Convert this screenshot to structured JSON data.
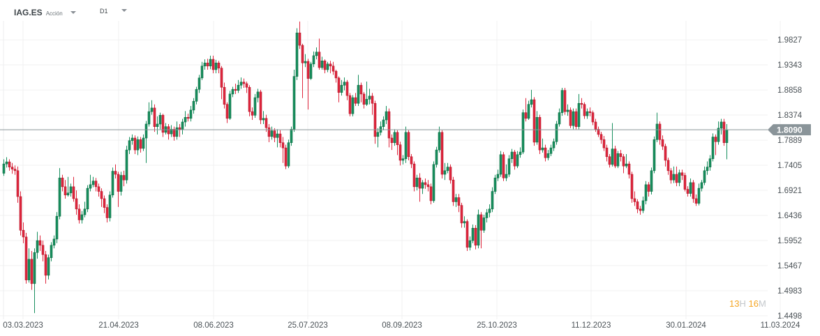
{
  "header": {
    "symbol": "IAG.ES",
    "instrument_type": "Acción",
    "timeframe": "D1"
  },
  "timer": {
    "hours": "13",
    "hours_unit": "H",
    "minutes": "16",
    "minutes_unit": "M"
  },
  "colors": {
    "up": "#178f5e",
    "down": "#e0263d",
    "price_line": "#8a9499",
    "timer": "#f5a623"
  },
  "chart_data": {
    "type": "candlestick",
    "current_price": "1.8090",
    "y_ticks": [
      "1.9827",
      "1.9343",
      "1.8858",
      "1.8374",
      "1.7889",
      "1.7405",
      "1.6921",
      "1.6436",
      "1.5952",
      "1.5467",
      "1.4983",
      "1.4498"
    ],
    "x_ticks": [
      "03.03.2023",
      "21.04.2023",
      "08.06.2023",
      "25.07.2023",
      "08.09.2023",
      "25.10.2023",
      "11.12.2023",
      "30.01.2024",
      "11.03.2024"
    ],
    "grid": true,
    "open": [
      1.725,
      1.743,
      1.747,
      1.737,
      1.733,
      1.73,
      1.68,
      1.615,
      1.602,
      1.519,
      1.559,
      1.512,
      1.572,
      1.595,
      1.586,
      1.568,
      1.528,
      1.562,
      1.586,
      1.598,
      1.642,
      1.716,
      1.699,
      1.683,
      1.687,
      1.699,
      1.676,
      1.656,
      1.635,
      1.645,
      1.656,
      1.696,
      1.703,
      1.71,
      1.699,
      1.69,
      1.676,
      1.659,
      1.639,
      1.683,
      1.729,
      1.723,
      1.69,
      1.721,
      1.712,
      1.77,
      1.788,
      1.793,
      1.77,
      1.79,
      1.773,
      1.793,
      1.82,
      1.844,
      1.851,
      1.815,
      1.82,
      1.837,
      1.804,
      1.815,
      1.801,
      1.81,
      1.796,
      1.813,
      1.81,
      1.824,
      1.833,
      1.831,
      1.847,
      1.864,
      1.887,
      1.909,
      1.932,
      1.938,
      1.932,
      1.945,
      1.925,
      1.938,
      1.928,
      1.891,
      1.858,
      1.831,
      1.878,
      1.887,
      1.885,
      1.895,
      1.901,
      1.898,
      1.891,
      1.844,
      1.837,
      1.871,
      1.882,
      1.828,
      1.831,
      1.813,
      1.796,
      1.807,
      1.794,
      1.801,
      1.784,
      1.774,
      1.739,
      1.784,
      1.81,
      1.912,
      1.996,
      1.972,
      1.938,
      1.941,
      1.908,
      1.936,
      1.952,
      1.959,
      1.929,
      1.942,
      1.925,
      1.936,
      1.932,
      1.922,
      1.909,
      1.881,
      1.895,
      1.901,
      1.875,
      1.84,
      1.871,
      1.86,
      1.895,
      1.878,
      1.858,
      1.868,
      1.874,
      1.86,
      1.796,
      1.804,
      1.815,
      1.828,
      1.844,
      1.793,
      1.784,
      1.804,
      1.78,
      1.75,
      1.753,
      1.804,
      1.757,
      1.743,
      1.699,
      1.716,
      1.696,
      1.707,
      1.703,
      1.699,
      1.672,
      1.742,
      1.77,
      1.804,
      1.723,
      1.73,
      1.737,
      1.712,
      1.67,
      1.678,
      1.663,
      1.629,
      1.632,
      1.582,
      1.595,
      1.619,
      1.586,
      1.645,
      1.615,
      1.639,
      1.649,
      1.656,
      1.69,
      1.716,
      1.723,
      1.761,
      1.716,
      1.723,
      1.753,
      1.766,
      1.739,
      1.761,
      1.766,
      1.842,
      1.831,
      1.858,
      1.867,
      1.785,
      1.833,
      1.77,
      1.774,
      1.755,
      1.763,
      1.774,
      1.786,
      1.82,
      1.842,
      1.885,
      1.844,
      1.847,
      1.817,
      1.844,
      1.815,
      1.86,
      1.858,
      1.836,
      1.844,
      1.842,
      1.824,
      1.81,
      1.8,
      1.79,
      1.774,
      1.757,
      1.742,
      1.772,
      1.739,
      1.763,
      1.757,
      1.739,
      1.743,
      1.723,
      1.676,
      1.67,
      1.656,
      1.653,
      1.672,
      1.703,
      1.69,
      1.73,
      1.79,
      1.82,
      1.79,
      1.777,
      1.75,
      1.73,
      1.712,
      1.723,
      1.707,
      1.726,
      1.721,
      1.694,
      1.686,
      1.707,
      1.676,
      1.667,
      1.696,
      1.707,
      1.73,
      1.737,
      1.753,
      1.795,
      1.786,
      1.812,
      1.824,
      1.784
    ],
    "high": [
      1.752,
      1.756,
      1.752,
      1.745,
      1.74,
      1.738,
      1.69,
      1.63,
      1.61,
      1.58,
      1.575,
      1.58,
      1.612,
      1.605,
      1.595,
      1.575,
      1.568,
      1.592,
      1.605,
      1.65,
      1.735,
      1.722,
      1.712,
      1.718,
      1.705,
      1.718,
      1.692,
      1.665,
      1.652,
      1.67,
      1.702,
      1.722,
      1.718,
      1.716,
      1.705,
      1.696,
      1.682,
      1.665,
      1.69,
      1.736,
      1.742,
      1.728,
      1.728,
      1.73,
      1.778,
      1.795,
      1.8,
      1.798,
      1.796,
      1.795,
      1.8,
      1.826,
      1.862,
      1.866,
      1.858,
      1.835,
      1.842,
      1.84,
      1.822,
      1.82,
      1.818,
      1.815,
      1.825,
      1.82,
      1.83,
      1.845,
      1.84,
      1.855,
      1.87,
      1.892,
      1.915,
      1.94,
      1.945,
      1.946,
      1.952,
      1.952,
      1.944,
      1.942,
      1.932,
      1.9,
      1.862,
      1.884,
      1.892,
      1.898,
      1.905,
      1.91,
      1.908,
      1.902,
      1.895,
      1.852,
      1.878,
      1.888,
      1.886,
      1.845,
      1.838,
      1.82,
      1.815,
      1.812,
      1.81,
      1.808,
      1.795,
      1.78,
      1.79,
      1.815,
      1.925,
      2.005,
      2.018,
      1.975,
      1.955,
      1.946,
      1.94,
      1.96,
      1.968,
      1.985,
      1.95,
      1.945,
      1.94,
      1.942,
      1.94,
      1.925,
      1.912,
      1.905,
      1.91,
      1.905,
      1.88,
      1.876,
      1.88,
      1.915,
      1.9,
      1.882,
      1.902,
      1.888,
      1.88,
      1.865,
      1.812,
      1.825,
      1.835,
      1.855,
      1.85,
      1.8,
      1.81,
      1.808,
      1.786,
      1.76,
      1.815,
      1.808,
      1.762,
      1.748,
      1.722,
      1.725,
      1.712,
      1.715,
      1.712,
      1.705,
      1.748,
      1.776,
      1.815,
      1.808,
      1.745,
      1.745,
      1.742,
      1.718,
      1.685,
      1.685,
      1.668,
      1.642,
      1.636,
      1.603,
      1.626,
      1.625,
      1.655,
      1.65,
      1.645,
      1.656,
      1.665,
      1.698,
      1.722,
      1.732,
      1.768,
      1.766,
      1.742,
      1.76,
      1.772,
      1.77,
      1.768,
      1.775,
      1.848,
      1.87,
      1.865,
      1.886,
      1.872,
      1.845,
      1.838,
      1.792,
      1.78,
      1.77,
      1.78,
      1.792,
      1.826,
      1.85,
      1.89,
      1.89,
      1.858,
      1.852,
      1.85,
      1.85,
      1.878,
      1.87,
      1.862,
      1.85,
      1.852,
      1.846,
      1.83,
      1.815,
      1.805,
      1.797,
      1.78,
      1.762,
      1.822,
      1.778,
      1.768,
      1.77,
      1.762,
      1.762,
      1.748,
      1.728,
      1.69,
      1.675,
      1.662,
      1.68,
      1.71,
      1.708,
      1.736,
      1.796,
      1.842,
      1.825,
      1.798,
      1.782,
      1.755,
      1.735,
      1.738,
      1.738,
      1.732,
      1.732,
      1.726,
      1.7,
      1.715,
      1.712,
      1.684,
      1.705,
      1.712,
      1.738,
      1.748,
      1.76,
      1.802,
      1.8,
      1.825,
      1.83,
      1.83,
      1.82
    ],
    "low": [
      1.72,
      1.736,
      1.73,
      1.724,
      1.722,
      1.668,
      1.605,
      1.59,
      1.512,
      1.514,
      1.5,
      1.455,
      1.56,
      1.575,
      1.555,
      1.512,
      1.52,
      1.555,
      1.58,
      1.59,
      1.636,
      1.69,
      1.676,
      1.68,
      1.68,
      1.67,
      1.645,
      1.628,
      1.628,
      1.64,
      1.65,
      1.69,
      1.698,
      1.69,
      1.68,
      1.66,
      1.648,
      1.63,
      1.632,
      1.678,
      1.715,
      1.66,
      1.682,
      1.7,
      1.705,
      1.762,
      1.78,
      1.762,
      1.76,
      1.765,
      1.768,
      1.745,
      1.815,
      1.838,
      1.805,
      1.8,
      1.81,
      1.795,
      1.8,
      1.79,
      1.795,
      1.788,
      1.79,
      1.795,
      1.8,
      1.815,
      1.825,
      1.825,
      1.84,
      1.858,
      1.88,
      1.905,
      1.925,
      1.925,
      1.926,
      1.918,
      1.918,
      1.918,
      1.868,
      1.85,
      1.822,
      1.828,
      1.872,
      1.878,
      1.88,
      1.888,
      1.89,
      1.88,
      1.835,
      1.828,
      1.832,
      1.862,
      1.82,
      1.82,
      1.805,
      1.785,
      1.79,
      1.785,
      1.775,
      1.775,
      1.745,
      1.733,
      1.735,
      1.778,
      1.805,
      1.905,
      1.965,
      1.87,
      1.93,
      1.848,
      1.905,
      1.93,
      1.945,
      1.925,
      1.925,
      1.918,
      1.92,
      1.918,
      1.915,
      1.9,
      1.862,
      1.875,
      1.885,
      1.866,
      1.835,
      1.835,
      1.855,
      1.855,
      1.862,
      1.85,
      1.855,
      1.858,
      1.838,
      1.782,
      1.775,
      1.798,
      1.808,
      1.82,
      1.775,
      1.77,
      1.778,
      1.76,
      1.74,
      1.742,
      1.745,
      1.75,
      1.735,
      1.69,
      1.692,
      1.67,
      1.685,
      1.695,
      1.69,
      1.665,
      1.668,
      1.736,
      1.765,
      1.715,
      1.712,
      1.725,
      1.705,
      1.662,
      1.66,
      1.65,
      1.62,
      1.62,
      1.575,
      1.576,
      1.59,
      1.578,
      1.58,
      1.58,
      1.61,
      1.63,
      1.64,
      1.65,
      1.685,
      1.71,
      1.718,
      1.71,
      1.71,
      1.718,
      1.745,
      1.732,
      1.735,
      1.755,
      1.762,
      1.825,
      1.828,
      1.852,
      1.778,
      1.78,
      1.762,
      1.765,
      1.748,
      1.75,
      1.758,
      1.768,
      1.78,
      1.815,
      1.836,
      1.838,
      1.836,
      1.812,
      1.81,
      1.81,
      1.81,
      1.85,
      1.83,
      1.83,
      1.835,
      1.818,
      1.805,
      1.795,
      1.782,
      1.768,
      1.748,
      1.736,
      1.738,
      1.735,
      1.735,
      1.748,
      1.725,
      1.735,
      1.715,
      1.668,
      1.662,
      1.648,
      1.645,
      1.648,
      1.665,
      1.68,
      1.684,
      1.725,
      1.785,
      1.78,
      1.77,
      1.738,
      1.722,
      1.705,
      1.706,
      1.7,
      1.7,
      1.712,
      1.69,
      1.68,
      1.68,
      1.668,
      1.662,
      1.663,
      1.69,
      1.702,
      1.722,
      1.73,
      1.748,
      1.76,
      1.78,
      1.8,
      1.778,
      1.752
    ],
    "close": [
      1.743,
      1.747,
      1.737,
      1.733,
      1.73,
      1.68,
      1.615,
      1.602,
      1.519,
      1.559,
      1.512,
      1.572,
      1.595,
      1.586,
      1.568,
      1.528,
      1.562,
      1.586,
      1.598,
      1.642,
      1.716,
      1.699,
      1.683,
      1.687,
      1.699,
      1.676,
      1.656,
      1.635,
      1.645,
      1.656,
      1.696,
      1.703,
      1.71,
      1.699,
      1.69,
      1.676,
      1.659,
      1.639,
      1.683,
      1.729,
      1.723,
      1.69,
      1.721,
      1.712,
      1.77,
      1.788,
      1.793,
      1.77,
      1.79,
      1.773,
      1.793,
      1.82,
      1.844,
      1.851,
      1.815,
      1.82,
      1.837,
      1.804,
      1.815,
      1.801,
      1.81,
      1.796,
      1.813,
      1.81,
      1.824,
      1.833,
      1.831,
      1.847,
      1.864,
      1.887,
      1.909,
      1.932,
      1.938,
      1.932,
      1.945,
      1.925,
      1.938,
      1.928,
      1.891,
      1.858,
      1.831,
      1.878,
      1.887,
      1.885,
      1.895,
      1.901,
      1.898,
      1.891,
      1.844,
      1.837,
      1.871,
      1.882,
      1.828,
      1.831,
      1.813,
      1.796,
      1.807,
      1.794,
      1.801,
      1.784,
      1.774,
      1.739,
      1.784,
      1.81,
      1.912,
      1.996,
      1.972,
      1.938,
      1.941,
      1.908,
      1.936,
      1.952,
      1.959,
      1.929,
      1.942,
      1.925,
      1.936,
      1.932,
      1.922,
      1.909,
      1.881,
      1.895,
      1.901,
      1.875,
      1.84,
      1.871,
      1.86,
      1.895,
      1.878,
      1.858,
      1.868,
      1.874,
      1.86,
      1.796,
      1.804,
      1.815,
      1.828,
      1.844,
      1.793,
      1.784,
      1.804,
      1.78,
      1.75,
      1.753,
      1.804,
      1.757,
      1.743,
      1.699,
      1.716,
      1.696,
      1.707,
      1.703,
      1.699,
      1.672,
      1.742,
      1.77,
      1.804,
      1.723,
      1.73,
      1.737,
      1.712,
      1.67,
      1.678,
      1.663,
      1.629,
      1.632,
      1.582,
      1.595,
      1.619,
      1.586,
      1.645,
      1.615,
      1.639,
      1.649,
      1.656,
      1.69,
      1.716,
      1.723,
      1.761,
      1.716,
      1.723,
      1.753,
      1.766,
      1.739,
      1.761,
      1.766,
      1.842,
      1.831,
      1.858,
      1.867,
      1.785,
      1.833,
      1.77,
      1.774,
      1.755,
      1.763,
      1.774,
      1.786,
      1.82,
      1.842,
      1.885,
      1.844,
      1.847,
      1.817,
      1.844,
      1.815,
      1.86,
      1.858,
      1.836,
      1.844,
      1.842,
      1.824,
      1.81,
      1.8,
      1.79,
      1.774,
      1.757,
      1.742,
      1.772,
      1.739,
      1.763,
      1.757,
      1.739,
      1.743,
      1.723,
      1.676,
      1.67,
      1.656,
      1.653,
      1.672,
      1.703,
      1.69,
      1.73,
      1.79,
      1.82,
      1.79,
      1.777,
      1.75,
      1.73,
      1.712,
      1.723,
      1.707,
      1.726,
      1.721,
      1.694,
      1.686,
      1.707,
      1.676,
      1.667,
      1.696,
      1.707,
      1.73,
      1.737,
      1.753,
      1.795,
      1.786,
      1.812,
      1.824,
      1.784,
      1.809
    ]
  }
}
